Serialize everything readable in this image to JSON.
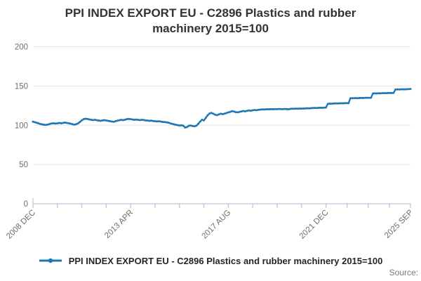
{
  "chart": {
    "title_lines": [
      "PPI INDEX EXPORT EU - C2896 Plastics and rubber",
      "machinery 2015=100"
    ],
    "legend_label": "PPI INDEX EXPORT EU - C2896 Plastics and rubber machinery 2015=100",
    "source_label": "Source:",
    "colors": {
      "series": "#1f77b4",
      "axis": "#b9c9dc",
      "grid": "#e3e3e3",
      "tick_label": "#6f6f6f",
      "title": "#333333",
      "source": "#787878"
    }
  },
  "chart_data": {
    "type": "line",
    "title": "PPI INDEX EXPORT EU - C2896 Plastics and rubber machinery 2015=100",
    "xlabel": "",
    "ylabel": "",
    "frequency": "monthly",
    "x_start": "2008 DEC",
    "x_end": "2025 SEP",
    "ylim": [
      0,
      200
    ],
    "y_ticks": [
      0,
      50,
      100,
      150,
      200
    ],
    "grid": true,
    "legend_position": "bottom",
    "x_tick_labels": [
      "2008 DEC",
      "2013 APR",
      "2017 AUG",
      "2021 DEC",
      "2025 SEP"
    ],
    "x_tick_label_month_indices": [
      0,
      52,
      104,
      156,
      201
    ],
    "minor_ticks_between_labels": 3,
    "series": [
      {
        "name": "PPI INDEX EXPORT EU - C2896 Plastics and rubber machinery 2015=100",
        "values": [
          104.5,
          103.8,
          103.1,
          102.4,
          101.5,
          101.0,
          100.6,
          100.4,
          100.9,
          101.7,
          102.2,
          102.5,
          102.1,
          102.4,
          102.9,
          102.5,
          102.9,
          103.3,
          102.9,
          102.5,
          102.0,
          101.4,
          100.8,
          101.3,
          102.3,
          104.1,
          106.3,
          107.7,
          108.3,
          107.9,
          107.4,
          106.9,
          106.5,
          106.9,
          106.4,
          106.0,
          105.6,
          106.1,
          106.5,
          106.0,
          105.6,
          105.1,
          104.7,
          104.4,
          105.1,
          105.8,
          106.4,
          106.8,
          106.5,
          107.1,
          107.7,
          108.1,
          107.7,
          107.3,
          106.9,
          107.2,
          106.8,
          106.5,
          106.9,
          106.6,
          106.2,
          105.9,
          105.6,
          105.8,
          105.4,
          105.1,
          104.8,
          105.0,
          104.7,
          104.3,
          104.0,
          103.7,
          103.3,
          102.5,
          101.8,
          101.2,
          100.6,
          100.1,
          99.7,
          99.9,
          99.4,
          97.1,
          97.6,
          99.3,
          99.6,
          99.0,
          98.7,
          99.4,
          101.8,
          104.6,
          106.9,
          106.2,
          109.4,
          112.6,
          114.9,
          115.7,
          114.6,
          113.4,
          112.9,
          113.8,
          114.6,
          114.1,
          114.8,
          115.5,
          116.3,
          117.0,
          117.9,
          117.4,
          116.7,
          116.4,
          117.0,
          117.6,
          118.1,
          117.7,
          118.3,
          118.8,
          118.5,
          119.0,
          119.4,
          119.1,
          119.6,
          119.9,
          120.1,
          120.0,
          120.2,
          120.4,
          120.3,
          120.5,
          120.4,
          120.6,
          120.5,
          120.7,
          120.6,
          120.5,
          120.7,
          120.6,
          120.4,
          120.8,
          121.0,
          120.9,
          121.1,
          121.0,
          121.2,
          121.1,
          121.3,
          121.4,
          121.6,
          121.5,
          121.7,
          121.9,
          122.0,
          121.9,
          122.1,
          122.3,
          122.2,
          122.4,
          122.6,
          127.2,
          127.5,
          127.4,
          127.6,
          127.8,
          127.7,
          127.9,
          128.0,
          127.9,
          128.1,
          128.2,
          128.1,
          134.2,
          134.5,
          134.4,
          134.6,
          134.5,
          134.7,
          134.8,
          134.7,
          134.9,
          135.0,
          134.9,
          135.1,
          140.4,
          140.6,
          140.5,
          140.7,
          140.6,
          140.8,
          140.9,
          140.8,
          141.0,
          141.1,
          141.0,
          141.2,
          145.4,
          145.6,
          145.5,
          145.7,
          145.8,
          145.7,
          145.9,
          146.0,
          146.1
        ]
      }
    ]
  }
}
